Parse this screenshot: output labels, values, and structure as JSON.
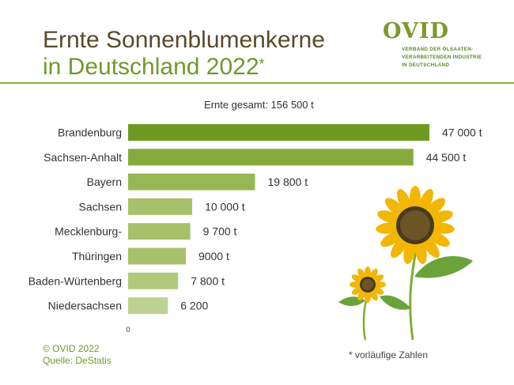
{
  "header": {
    "title_line1": "Ernte Sonnenblumenkerne",
    "title_line2": "in Deutschland 2022",
    "title_marker": "*"
  },
  "logo": {
    "name": "OVID",
    "subtitle_lines": [
      "VERBAND DER ÖLSAATEN-",
      "VERARBEITENDEN INDUSTRIE",
      "IN DEUTSCHLAND"
    ]
  },
  "total_label": "Ernte gesamt: 156 500 t",
  "chart_data": {
    "type": "bar",
    "orientation": "horizontal",
    "categories": [
      "Brandenburg",
      "Sachsen-Anhalt",
      "Bayern",
      "Sachsen",
      "Mecklenburg-",
      "Thüringen",
      "Baden-Würtenberg",
      "Niedersachsen"
    ],
    "values": [
      47000,
      44500,
      19800,
      10000,
      9700,
      9000,
      7800,
      6200
    ],
    "value_labels": [
      "47 000 t",
      "44 500 t",
      "19 800 t",
      "10 000 t",
      "9 700 t",
      "9000 t",
      "7 800 t",
      "6 200"
    ],
    "x_tick_labels": [
      "0"
    ],
    "xlim": [
      0,
      47000
    ],
    "bar_colors": [
      "#6e9a22",
      "#86ab3c",
      "#97b755",
      "#a6c16a",
      "#a6c16a",
      "#a6c16a",
      "#b1c97c",
      "#bed293"
    ]
  },
  "footer": {
    "copyright": "© OVID 2022",
    "source": "Quelle: DeStatis",
    "note": "* vorläufige Zahlen"
  },
  "colors": {
    "brand_green": "#6e9a2c",
    "title_brown": "#5a4a2a",
    "sunflower_yellow": "#f2b705"
  },
  "illustration": "sunflowers"
}
